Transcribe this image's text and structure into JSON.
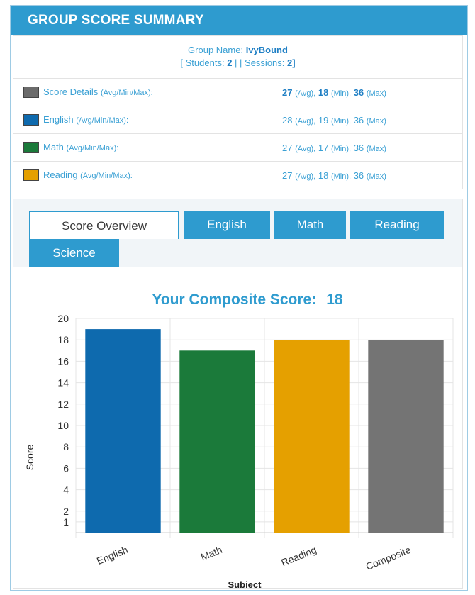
{
  "header": {
    "title": "GROUP SCORE SUMMARY"
  },
  "group": {
    "name_label": "Group Name:",
    "name_value": "IvyBound",
    "students_label": "[ Students:",
    "students_value": "2",
    "separator": "| | Sessions:",
    "sessions_value": "2]"
  },
  "rows": [
    {
      "label": "Score Details",
      "qualifier": "(Avg/Min/Max):",
      "color": "#6b6b6b",
      "avg": "27",
      "avg_unit": "(Avg),",
      "min": "18",
      "min_unit": "(Min),",
      "max": "36",
      "max_unit": "(Max)",
      "bold": true
    },
    {
      "label": "English",
      "qualifier": "(Avg/Min/Max):",
      "color": "#0e6aae",
      "avg": "28",
      "avg_unit": "(Avg),",
      "min": "19",
      "min_unit": "(Min),",
      "max": "36",
      "max_unit": "(Max)",
      "bold": false
    },
    {
      "label": "Math",
      "qualifier": "(Avg/Min/Max):",
      "color": "#1b7a3a",
      "avg": "27",
      "avg_unit": "(Avg),",
      "min": "17",
      "min_unit": "(Min),",
      "max": "36",
      "max_unit": "(Max)",
      "bold": false
    },
    {
      "label": "Reading",
      "qualifier": "(Avg/Min/Max):",
      "color": "#e5a000",
      "avg": "27",
      "avg_unit": "(Avg),",
      "min": "18",
      "min_unit": "(Min),",
      "max": "36",
      "max_unit": "(Max)",
      "bold": false
    }
  ],
  "tabs": [
    {
      "label": "Score Overview",
      "active": true
    },
    {
      "label": "English",
      "active": false
    },
    {
      "label": "Math",
      "active": false
    },
    {
      "label": "Reading",
      "active": false
    },
    {
      "label": "Science",
      "active": false
    }
  ],
  "chart_data": {
    "type": "bar",
    "title": "Your Composite Score:",
    "title_value": "18",
    "categories": [
      "English",
      "Math",
      "Reading",
      "Composite"
    ],
    "values": [
      19,
      17,
      18,
      18
    ],
    "colors": [
      "#0e6aae",
      "#1b7a3a",
      "#e5a000",
      "#747474"
    ],
    "xlabel": "Subject",
    "ylabel": "Score",
    "yticks": [
      1,
      2,
      4,
      6,
      8,
      10,
      12,
      14,
      16,
      18,
      20
    ],
    "ylim": [
      0,
      20
    ],
    "grid": true,
    "title_color": "#2e9bcf"
  }
}
